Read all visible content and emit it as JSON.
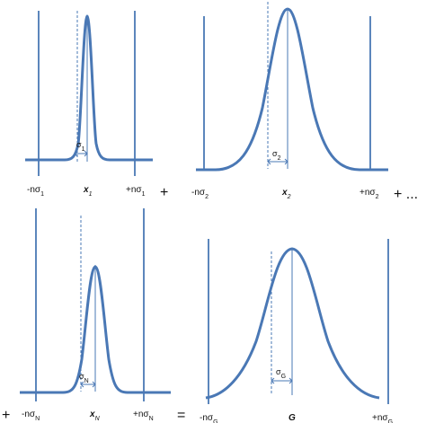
{
  "panels": [
    {
      "id": "p1",
      "left_label": "-nσ",
      "left_sub": "1",
      "center_label": "x",
      "center_sub": "1",
      "right_label": "+nσ",
      "right_sub": "1",
      "sigma_label": "σ",
      "sigma_sub": "1"
    },
    {
      "id": "p2",
      "left_label": "-nσ",
      "left_sub": "2",
      "center_label": "x",
      "center_sub": "2",
      "right_label": "+nσ",
      "right_sub": "2",
      "sigma_label": "σ",
      "sigma_sub": "2"
    },
    {
      "id": "p3",
      "left_label": "-nσ",
      "left_sub": "N",
      "center_label": "x",
      "center_sub": "N",
      "right_label": "+nσ",
      "right_sub": "N",
      "sigma_label": "σ",
      "sigma_sub": "N"
    },
    {
      "id": "p4",
      "left_label": "-nσ",
      "left_sub": "G",
      "center_label": "G",
      "center_sub": "",
      "right_label": "+nσ",
      "right_sub": "G",
      "sigma_label": "σ",
      "sigma_sub": "G"
    }
  ],
  "operators": {
    "plus_1": "+",
    "plus_ellipsis": "+ ...",
    "plus_left": "+",
    "equals": "="
  },
  "colors": {
    "curve": "#4a78b5",
    "text": "#111111"
  }
}
